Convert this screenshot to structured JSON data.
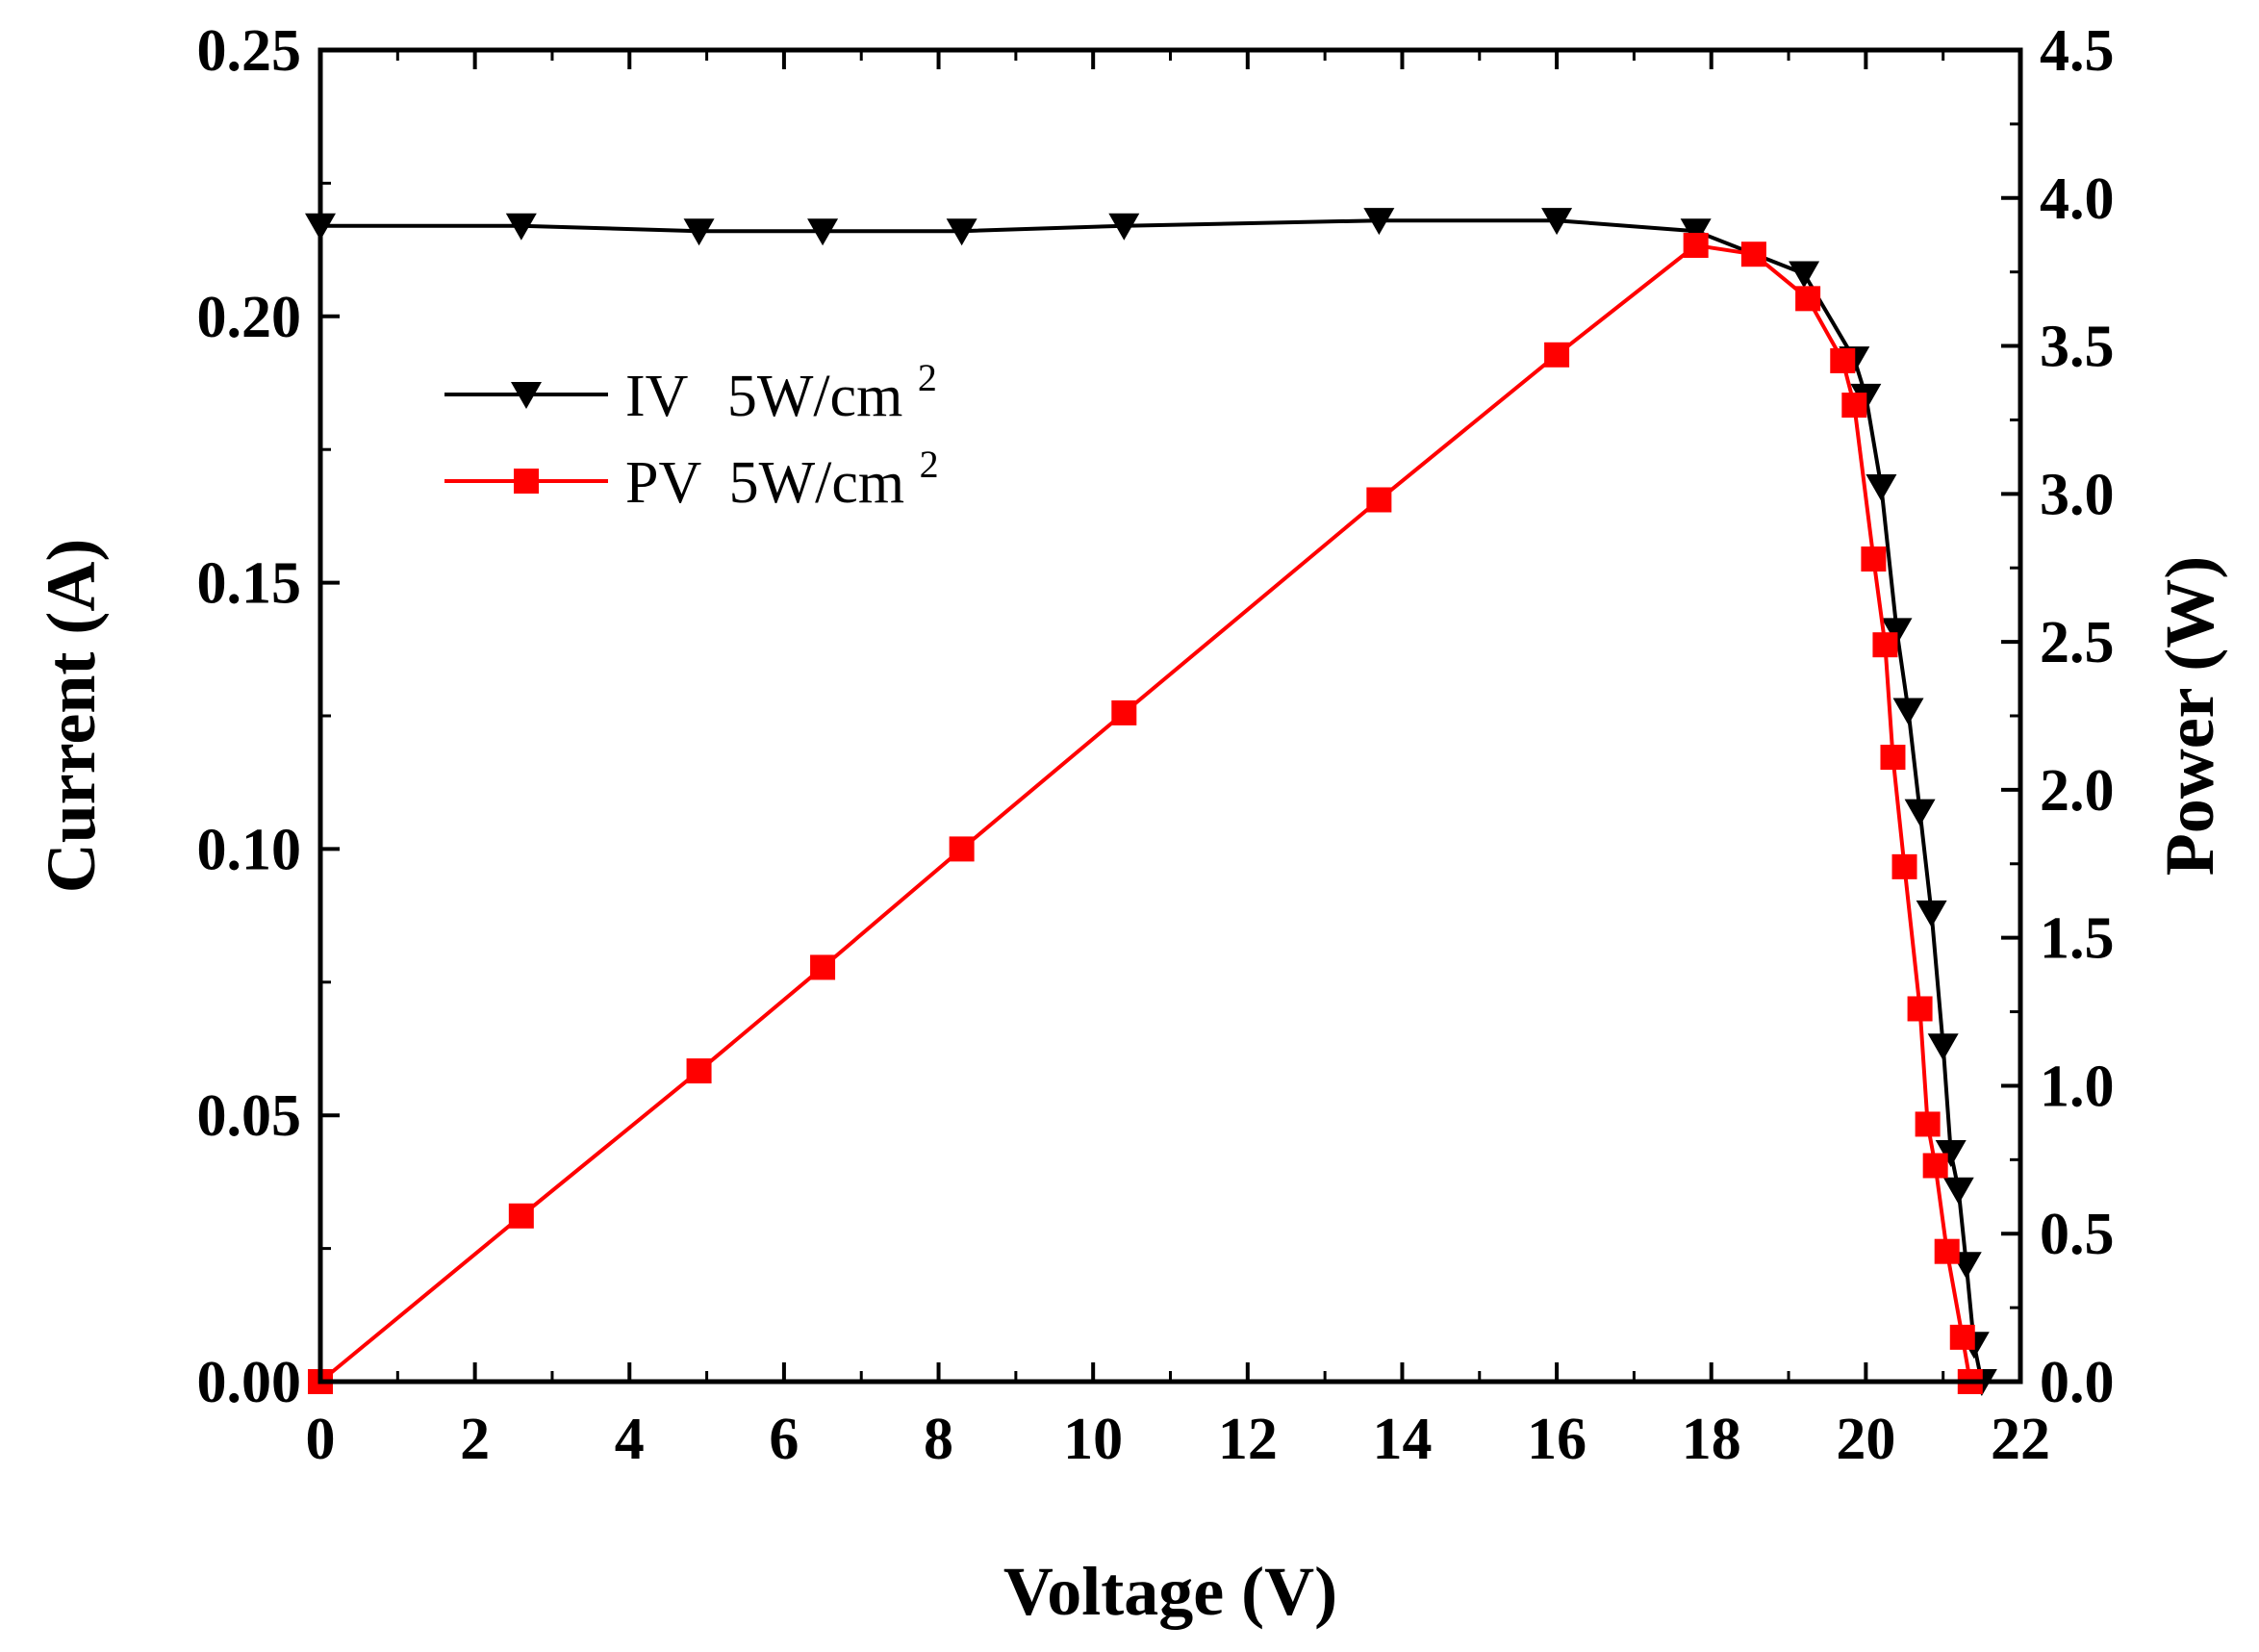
{
  "chart_data": {
    "type": "line",
    "title": "",
    "xlabel": "Voltage (V)",
    "ylabel_left": "Current (A)",
    "ylabel_right": "Power (W)",
    "xlim": [
      0,
      22
    ],
    "ylim_left": [
      0,
      0.25
    ],
    "ylim_right": [
      0,
      4.5
    ],
    "x_ticks": [
      "0",
      "2",
      "4",
      "6",
      "8",
      "10",
      "12",
      "14",
      "16",
      "18",
      "20",
      "22"
    ],
    "y_left_ticks": [
      "0.00",
      "0.05",
      "0.10",
      "0.15",
      "0.20",
      "0.25"
    ],
    "y_right_ticks": [
      "0.0",
      "0.5",
      "1.0",
      "1.5",
      "2.0",
      "2.5",
      "3.0",
      "3.5",
      "4.0",
      "4.5"
    ],
    "grid": false,
    "legend_position": "top-left",
    "series": [
      {
        "name": "IV",
        "label": "IV",
        "unit_label": "5W/cm",
        "unit_sup": "2",
        "axis": "left",
        "color": "#000000",
        "marker": "triangle-down",
        "x": [
          0.0,
          2.6,
          4.9,
          6.5,
          8.3,
          10.4,
          13.7,
          16.0,
          17.8,
          19.2,
          19.85,
          20.0,
          20.2,
          20.4,
          20.55,
          20.7,
          20.85,
          21.0,
          21.1,
          21.2,
          21.3,
          21.4,
          21.5
        ],
        "values": [
          0.217,
          0.217,
          0.216,
          0.216,
          0.216,
          0.217,
          0.218,
          0.218,
          0.216,
          0.208,
          0.192,
          0.185,
          0.168,
          0.141,
          0.126,
          0.107,
          0.088,
          0.063,
          0.043,
          0.036,
          0.022,
          0.007,
          0.0
        ]
      },
      {
        "name": "PV",
        "label": "PV",
        "unit_label": "5W/cm",
        "unit_sup": "2",
        "axis": "right",
        "color": "#ff0000",
        "marker": "square",
        "x": [
          0.0,
          2.6,
          4.9,
          6.5,
          8.3,
          10.4,
          13.7,
          16.0,
          17.8,
          18.55,
          19.25,
          19.7,
          19.85,
          20.1,
          20.25,
          20.35,
          20.5,
          20.7,
          20.8,
          20.9,
          21.05,
          21.25,
          21.35
        ],
        "values": [
          0.0,
          0.56,
          1.05,
          1.4,
          1.8,
          2.26,
          2.98,
          3.47,
          3.84,
          3.81,
          3.66,
          3.45,
          3.3,
          2.78,
          2.49,
          2.11,
          1.74,
          1.26,
          0.87,
          0.73,
          0.44,
          0.15,
          0.0
        ]
      }
    ]
  }
}
